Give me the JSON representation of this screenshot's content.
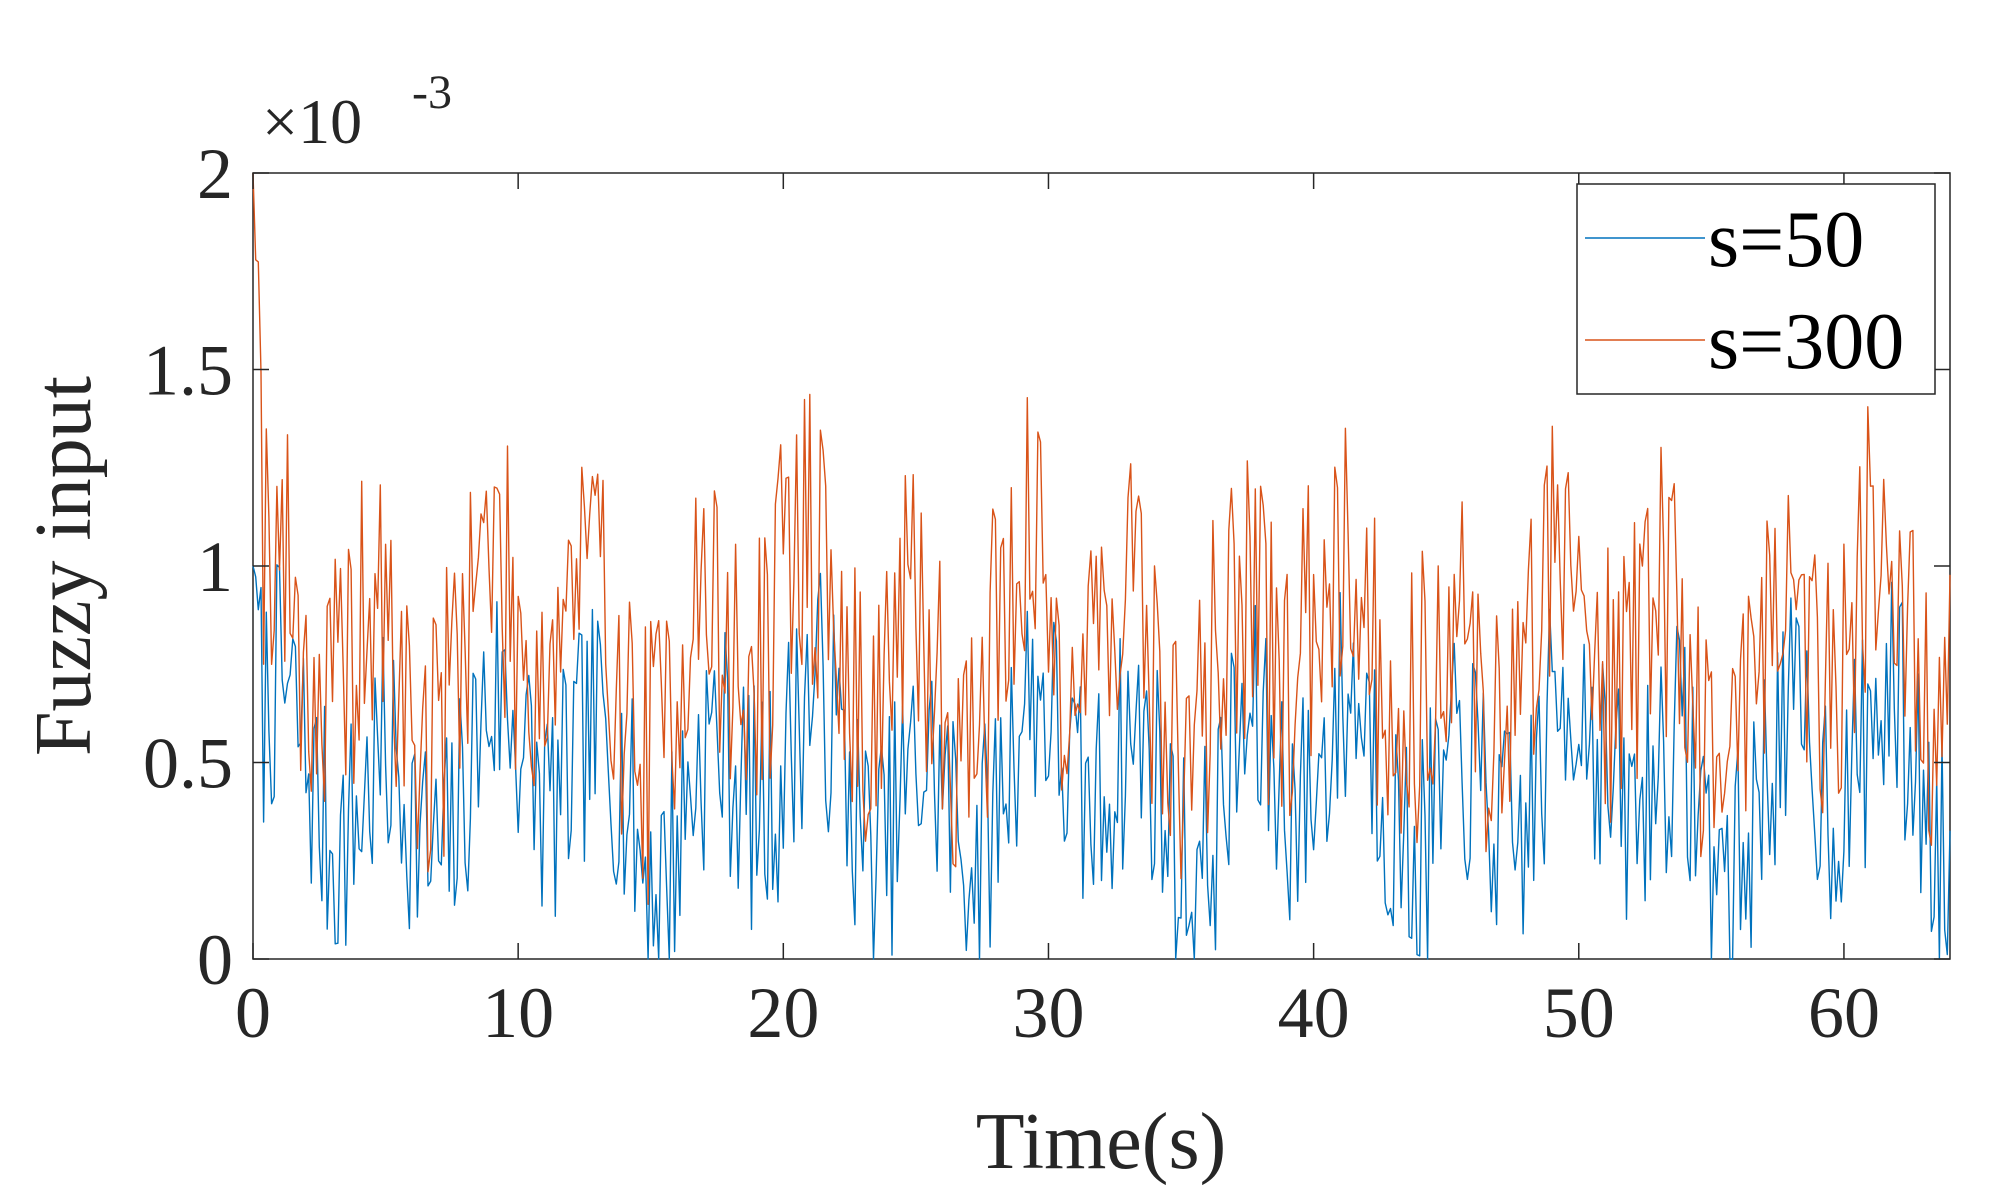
{
  "chart_data": {
    "type": "line",
    "title": "",
    "xlabel": "Time(s)",
    "ylabel": "Fuzzy input",
    "y_exponent_label": "×10",
    "y_exponent_power": "-3",
    "xlim": [
      0,
      64
    ],
    "ylim": [
      0,
      2
    ],
    "x_ticks": [
      0,
      10,
      20,
      30,
      40,
      50,
      60
    ],
    "x_tick_labels": [
      "0",
      "10",
      "20",
      "30",
      "40",
      "50",
      "60"
    ],
    "y_ticks": [
      0,
      0.5,
      1,
      1.5,
      2
    ],
    "y_tick_labels": [
      "0",
      "0.5",
      "1",
      "1.5",
      "2"
    ],
    "legend_position": "top-right",
    "grid": false,
    "sample_step": 0.1,
    "series": [
      {
        "name": "s=50",
        "color": "#0072BD",
        "baseline": 0.45,
        "amplitude": 0.25,
        "noise": 0.32,
        "seed": 7,
        "initial_peak": 1.0
      },
      {
        "name": "s=300",
        "color": "#D95319",
        "baseline": 0.8,
        "amplitude": 0.3,
        "noise": 0.38,
        "seed": 19,
        "initial_peak": 2.0
      }
    ]
  }
}
